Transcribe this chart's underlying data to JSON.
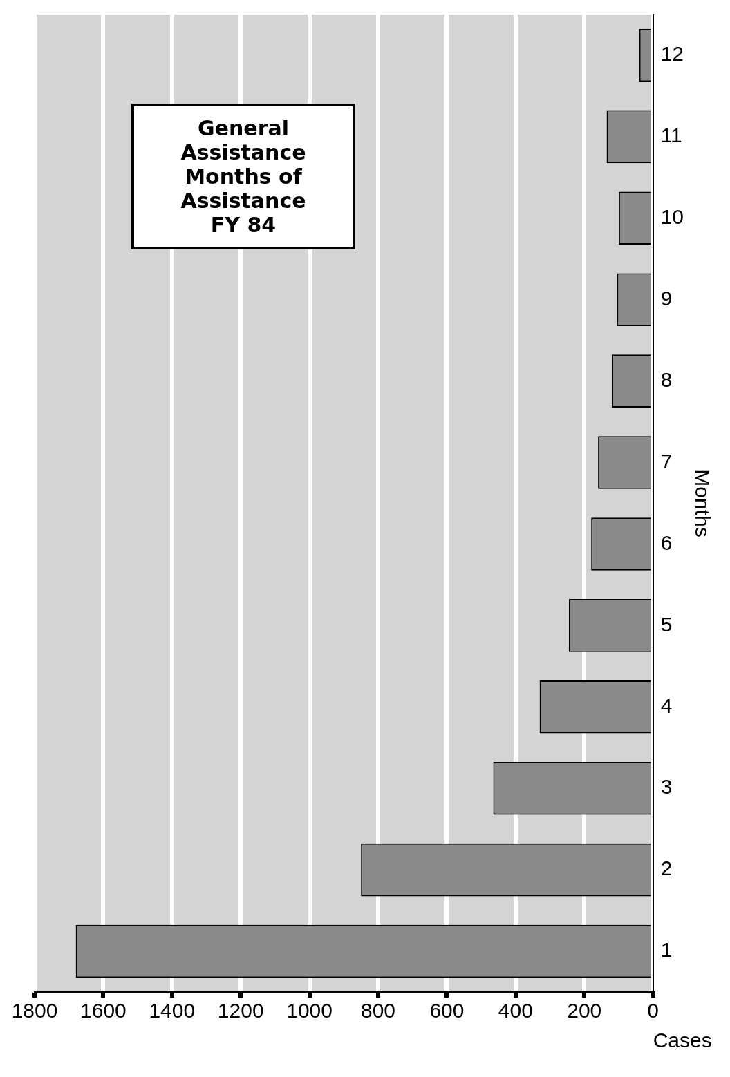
{
  "chart_data": {
    "type": "bar",
    "orientation": "horizontal",
    "title": "General Assistance\nMonths of Assistance\nFY 84",
    "xlabel": "Cases",
    "ylabel": "Months",
    "categories": [
      "12",
      "11",
      "10",
      "9",
      "8",
      "7",
      "6",
      "5",
      "4",
      "3",
      "2",
      "1"
    ],
    "values": [
      40,
      135,
      100,
      105,
      120,
      160,
      180,
      245,
      330,
      465,
      850,
      1680
    ],
    "color": "#8a8a8a",
    "xlim": [
      1800,
      0
    ],
    "xticks": [
      1800,
      1600,
      1400,
      1200,
      1000,
      800,
      600,
      400,
      200,
      0
    ],
    "grid": "x"
  }
}
